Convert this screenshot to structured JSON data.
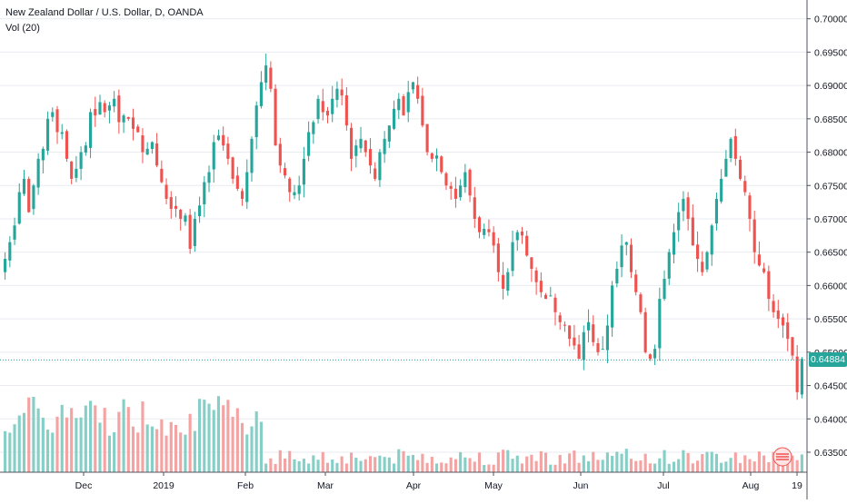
{
  "legend": {
    "title": "New Zealand Dollar / U.S. Dollar, D, OANDA",
    "indicator": "Vol (20)"
  },
  "current_price": "0.64884",
  "colors": {
    "up": "#26a69a",
    "down": "#ef5350",
    "vol_up": "#86cfc7",
    "vol_down": "#f5a3a2",
    "grid": "#e8ebf0",
    "axis_text": "#131722",
    "price_line": "#26a69a"
  },
  "chart_data": {
    "type": "candlestick",
    "title": "New Zealand Dollar / U.S. Dollar, D, OANDA",
    "y_axis": {
      "ticks": [
        "0.70000",
        "0.69500",
        "0.69000",
        "0.68500",
        "0.68000",
        "0.67500",
        "0.67000",
        "0.66500",
        "0.66000",
        "0.65500",
        "0.65000",
        "0.64500",
        "0.64000",
        "0.63500"
      ],
      "range": [
        0.632,
        0.702
      ]
    },
    "x_axis": {
      "ticks": [
        "Dec",
        "2019",
        "Feb",
        "Mar",
        "Apr",
        "May",
        "Jun",
        "Jul",
        "Aug",
        "19"
      ]
    },
    "grid": true,
    "volume_indicator": "Vol (20)",
    "close_series": [
      0.664,
      0.6665,
      0.669,
      0.674,
      0.676,
      0.671,
      0.675,
      0.679,
      0.6805,
      0.685,
      0.686,
      0.683,
      0.683,
      0.679,
      0.676,
      0.6775,
      0.68,
      0.681,
      0.686,
      0.6855,
      0.6875,
      0.686,
      0.687,
      0.688,
      0.6845,
      0.6855,
      0.685,
      0.6835,
      0.683,
      0.68,
      0.6805,
      0.6815,
      0.678,
      0.6755,
      0.673,
      0.6715,
      0.6715,
      0.67,
      0.6705,
      0.6655,
      0.67,
      0.672,
      0.6755,
      0.677,
      0.6815,
      0.6825,
      0.681,
      0.679,
      0.676,
      0.6745,
      0.673,
      0.677,
      0.682,
      0.687,
      0.6905,
      0.693,
      0.6895,
      0.681,
      0.678,
      0.6765,
      0.674,
      0.674,
      0.675,
      0.679,
      0.683,
      0.6845,
      0.688,
      0.686,
      0.6855,
      0.688,
      0.6895,
      0.6885,
      0.684,
      0.679,
      0.681,
      0.682,
      0.68,
      0.678,
      0.676,
      0.68,
      0.682,
      0.684,
      0.6865,
      0.688,
      0.6855,
      0.689,
      0.6905,
      0.688,
      0.684,
      0.68,
      0.679,
      0.6795,
      0.677,
      0.675,
      0.6745,
      0.673,
      0.675,
      0.677,
      0.6735,
      0.67,
      0.668,
      0.6685,
      0.668,
      0.666,
      0.662,
      0.6595,
      0.662,
      0.6665,
      0.668,
      0.6675,
      0.6645,
      0.6625,
      0.6605,
      0.659,
      0.658,
      0.6585,
      0.656,
      0.6545,
      0.654,
      0.652,
      0.651,
      0.649,
      0.653,
      0.6545,
      0.6515,
      0.65,
      0.6505,
      0.654,
      0.66,
      0.6625,
      0.666,
      0.6665,
      0.662,
      0.659,
      0.656,
      0.65,
      0.649,
      0.6505,
      0.658,
      0.661,
      0.665,
      0.668,
      0.671,
      0.673,
      0.67,
      0.666,
      0.664,
      0.662,
      0.665,
      0.669,
      0.673,
      0.676,
      0.679,
      0.682,
      0.679,
      0.676,
      0.674,
      0.67,
      0.665,
      0.663,
      0.662,
      0.658,
      0.656,
      0.655,
      0.654,
      0.652,
      0.6495,
      0.644,
      0.649
    ]
  }
}
